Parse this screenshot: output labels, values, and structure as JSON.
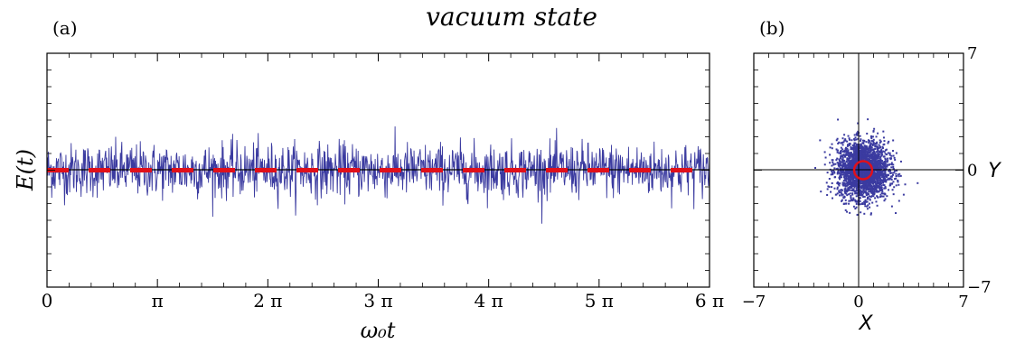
{
  "title": "vacuum state",
  "panel_labels": {
    "a": "(a)",
    "b": "(b)"
  },
  "chart_data": [
    {
      "panel": "(a)",
      "type": "line",
      "xlabel": "ω₀t",
      "ylabel": "E(t)",
      "xlim_pi": [
        0,
        6
      ],
      "xticks": [
        {
          "value_pi": 0,
          "label": "0"
        },
        {
          "value_pi": 1,
          "label": "π"
        },
        {
          "value_pi": 2,
          "label": "2 π"
        },
        {
          "value_pi": 3,
          "label": "3 π"
        },
        {
          "value_pi": 4,
          "label": "4 π"
        },
        {
          "value_pi": 5,
          "label": "5 π"
        },
        {
          "value_pi": 6,
          "label": "6 π"
        }
      ],
      "ylim": [
        -7,
        7
      ],
      "series": [
        {
          "kind": "noise",
          "color": "#3b3ba0",
          "mean": 0,
          "sigma": 0.8
        },
        {
          "kind": "mean-line",
          "color": "#000000",
          "value": 0
        },
        {
          "kind": "dashed-mean",
          "color": "#e0101a",
          "value": 0
        }
      ],
      "grid": false
    },
    {
      "panel": "(b)",
      "type": "scatter",
      "xlabel": "X",
      "ylabel": "Y",
      "xlim": [
        -7,
        7
      ],
      "ylim": [
        -7,
        7
      ],
      "xticks": [
        {
          "value": -7,
          "label": "−7"
        },
        {
          "value": 0,
          "label": "0"
        },
        {
          "value": 7,
          "label": "7"
        }
      ],
      "yticks": [
        {
          "value": 7,
          "label": "7"
        },
        {
          "value": 0,
          "label": "0"
        },
        {
          "value": -7,
          "label": "−7"
        }
      ],
      "cloud": {
        "color": "#3b3ba0",
        "center": [
          0.3,
          0
        ],
        "sigma": 0.85
      },
      "circle": {
        "color": "#e0101a",
        "center": [
          0.3,
          0
        ],
        "radius": 0.6
      },
      "grid": false
    }
  ]
}
